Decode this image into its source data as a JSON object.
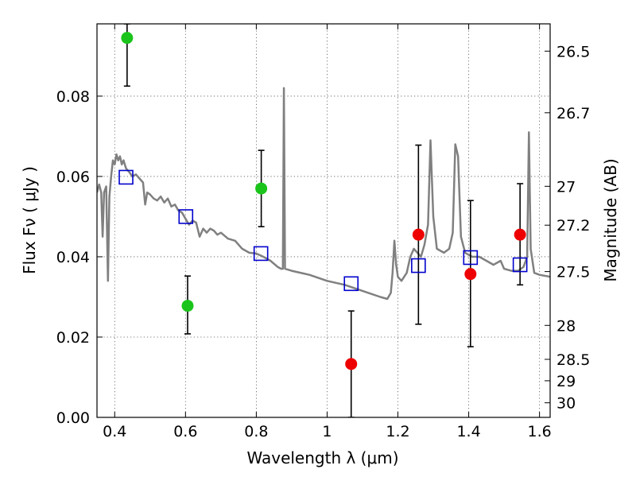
{
  "chart_data": {
    "type": "scatter",
    "xlabel": "Wavelength  λ (μm)",
    "ylabel": "Flux  Fν  ( μJy )",
    "y2label": "Magnitude (AB)",
    "xlim": [
      0.35,
      1.63
    ],
    "ylim": [
      0.0,
      0.098
    ],
    "x_ticks": [
      0.4,
      0.6,
      0.8,
      1.0,
      1.2,
      1.4,
      1.6
    ],
    "x_tick_labels": [
      "0.4",
      "0.6",
      "0.8",
      "1",
      "1.2",
      "1.4",
      "1.6"
    ],
    "y_ticks": [
      0.0,
      0.02,
      0.04,
      0.06,
      0.08
    ],
    "y_tick_labels": [
      "0.00",
      "0.02",
      "0.04",
      "0.06",
      "0.08"
    ],
    "mag_ticks": [
      26.5,
      26.7,
      27.0,
      27.2,
      27.5,
      28.0,
      28.5,
      29.0,
      30.0
    ],
    "mag_tick_labels": [
      "26.5",
      "26.7",
      "27",
      "27.2",
      "27.5",
      "28",
      "28.5",
      "29",
      "30"
    ],
    "grid": true,
    "colors": {
      "green": "#1bc41b",
      "red": "#ee0000",
      "model": "#808080",
      "box": "#0000cc",
      "errorbar": "#000000"
    },
    "series": [
      {
        "marker": "green-circle",
        "points": [
          {
            "x": 0.435,
            "y": 0.0945,
            "yerr_low": 0.0825,
            "yerr_high": 0.098
          },
          {
            "x": 0.606,
            "y": 0.0278,
            "yerr_low": 0.0208,
            "yerr_high": 0.0352
          },
          {
            "x": 0.814,
            "y": 0.057,
            "yerr_low": 0.0475,
            "yerr_high": 0.0665
          }
        ]
      },
      {
        "marker": "red-circle",
        "points": [
          {
            "x": 1.068,
            "y": 0.0133,
            "yerr_low": 0.0,
            "yerr_high": 0.0265
          },
          {
            "x": 1.258,
            "y": 0.0455,
            "yerr_low": 0.0232,
            "yerr_high": 0.0678
          },
          {
            "x": 1.405,
            "y": 0.0357,
            "yerr_low": 0.0176,
            "yerr_high": 0.054
          },
          {
            "x": 1.545,
            "y": 0.0455,
            "yerr_low": 0.033,
            "yerr_high": 0.0582
          }
        ]
      },
      {
        "marker": "blue-square",
        "points": [
          {
            "x": 0.432,
            "y": 0.0598
          },
          {
            "x": 0.601,
            "y": 0.05
          },
          {
            "x": 0.813,
            "y": 0.0408
          },
          {
            "x": 1.068,
            "y": 0.0333
          },
          {
            "x": 1.258,
            "y": 0.0378
          },
          {
            "x": 1.405,
            "y": 0.0398
          },
          {
            "x": 1.545,
            "y": 0.038
          }
        ]
      },
      {
        "marker": "model-line",
        "points": [
          [
            0.35,
            0.056
          ],
          [
            0.356,
            0.058
          ],
          [
            0.362,
            0.056
          ],
          [
            0.366,
            0.045
          ],
          [
            0.37,
            0.056
          ],
          [
            0.376,
            0.0575
          ],
          [
            0.381,
            0.034
          ],
          [
            0.385,
            0.055
          ],
          [
            0.39,
            0.06
          ],
          [
            0.395,
            0.064
          ],
          [
            0.4,
            0.063
          ],
          [
            0.405,
            0.0655
          ],
          [
            0.41,
            0.064
          ],
          [
            0.415,
            0.065
          ],
          [
            0.42,
            0.063
          ],
          [
            0.425,
            0.064
          ],
          [
            0.432,
            0.062
          ],
          [
            0.44,
            0.0612
          ],
          [
            0.45,
            0.06
          ],
          [
            0.46,
            0.0605
          ],
          [
            0.47,
            0.0595
          ],
          [
            0.48,
            0.0585
          ],
          [
            0.486,
            0.053
          ],
          [
            0.492,
            0.056
          ],
          [
            0.5,
            0.0555
          ],
          [
            0.51,
            0.0545
          ],
          [
            0.52,
            0.054
          ],
          [
            0.53,
            0.055
          ],
          [
            0.54,
            0.0535
          ],
          [
            0.55,
            0.0545
          ],
          [
            0.56,
            0.0525
          ],
          [
            0.57,
            0.053
          ],
          [
            0.58,
            0.0515
          ],
          [
            0.59,
            0.051
          ],
          [
            0.6,
            0.0495
          ],
          [
            0.61,
            0.048
          ],
          [
            0.62,
            0.049
          ],
          [
            0.63,
            0.0485
          ],
          [
            0.64,
            0.045
          ],
          [
            0.65,
            0.047
          ],
          [
            0.66,
            0.046
          ],
          [
            0.67,
            0.047
          ],
          [
            0.68,
            0.0465
          ],
          [
            0.69,
            0.0455
          ],
          [
            0.7,
            0.046
          ],
          [
            0.72,
            0.0445
          ],
          [
            0.74,
            0.044
          ],
          [
            0.76,
            0.042
          ],
          [
            0.78,
            0.041
          ],
          [
            0.8,
            0.0408
          ],
          [
            0.82,
            0.04
          ],
          [
            0.84,
            0.039
          ],
          [
            0.86,
            0.0375
          ],
          [
            0.87,
            0.037
          ],
          [
            0.875,
            0.037
          ],
          [
            0.878,
            0.082
          ],
          [
            0.881,
            0.037
          ],
          [
            0.9,
            0.0365
          ],
          [
            0.95,
            0.0355
          ],
          [
            1.0,
            0.034
          ],
          [
            1.05,
            0.033
          ],
          [
            1.1,
            0.0315
          ],
          [
            1.15,
            0.03
          ],
          [
            1.17,
            0.0295
          ],
          [
            1.18,
            0.031
          ],
          [
            1.185,
            0.036
          ],
          [
            1.19,
            0.044
          ],
          [
            1.195,
            0.038
          ],
          [
            1.2,
            0.035
          ],
          [
            1.21,
            0.034
          ],
          [
            1.225,
            0.036
          ],
          [
            1.235,
            0.04
          ],
          [
            1.245,
            0.042
          ],
          [
            1.255,
            0.041
          ],
          [
            1.265,
            0.04
          ],
          [
            1.275,
            0.043
          ],
          [
            1.285,
            0.048
          ],
          [
            1.292,
            0.069
          ],
          [
            1.3,
            0.05
          ],
          [
            1.31,
            0.042
          ],
          [
            1.33,
            0.041
          ],
          [
            1.345,
            0.042
          ],
          [
            1.355,
            0.046
          ],
          [
            1.362,
            0.068
          ],
          [
            1.37,
            0.065
          ],
          [
            1.378,
            0.045
          ],
          [
            1.39,
            0.041
          ],
          [
            1.41,
            0.04
          ],
          [
            1.43,
            0.04
          ],
          [
            1.45,
            0.039
          ],
          [
            1.47,
            0.038
          ],
          [
            1.49,
            0.039
          ],
          [
            1.5,
            0.037
          ],
          [
            1.52,
            0.0365
          ],
          [
            1.54,
            0.0365
          ],
          [
            1.555,
            0.0375
          ],
          [
            1.565,
            0.04
          ],
          [
            1.57,
            0.071
          ],
          [
            1.575,
            0.042
          ],
          [
            1.585,
            0.036
          ],
          [
            1.6,
            0.0355
          ],
          [
            1.63,
            0.035
          ]
        ]
      }
    ]
  }
}
